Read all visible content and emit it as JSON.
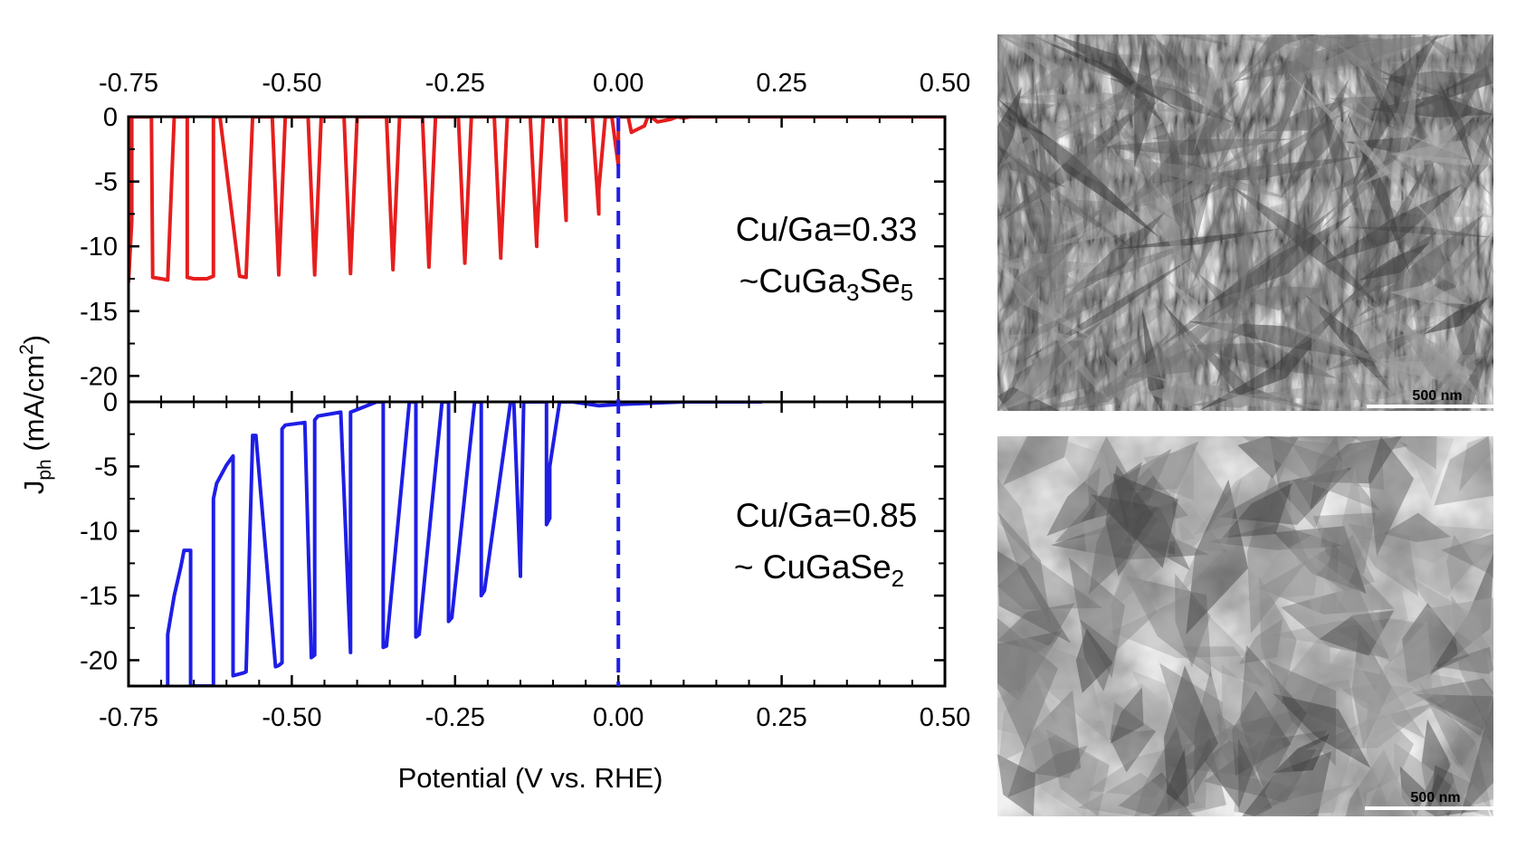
{
  "chart_data": {
    "type": "line",
    "xlabel": "Potential (V vs. RHE)",
    "ylabel": {
      "main": "J",
      "sub": "ph",
      "rest": " (mA/cm",
      "sup": "2",
      "close": ")"
    },
    "xlim": [
      -0.75,
      0.5
    ],
    "x_ticks": [
      -0.75,
      -0.5,
      -0.25,
      0.0,
      0.25,
      0.5
    ],
    "x_tick_labels": [
      "-0.75",
      "-0.50",
      "-0.25",
      "0.00",
      "0.25",
      "0.50"
    ],
    "reference_line": {
      "x": 0.0,
      "style": "dashed",
      "color": "#1f1fe6"
    },
    "panels": [
      {
        "ylim": [
          -22,
          0
        ],
        "y_ticks": [
          0,
          -5,
          -10,
          -15,
          -20
        ],
        "y_tick_labels": [
          "0",
          "-5",
          "-10",
          "-15",
          "-20"
        ],
        "color": "#e61e1e",
        "annotation": {
          "line1": "Cu/Ga=0.33",
          "line2": {
            "a": "~CuGa",
            "s1": "3",
            "b": "Se",
            "s2": "5"
          }
        },
        "x": [
          -0.75,
          -0.745,
          -0.745,
          -0.715,
          -0.713,
          -0.7,
          -0.69,
          -0.69,
          -0.68,
          -0.66,
          -0.66,
          -0.65,
          -0.63,
          -0.62,
          -0.62,
          -0.61,
          -0.58,
          -0.57,
          -0.57,
          -0.56,
          -0.53,
          -0.52,
          -0.52,
          -0.51,
          -0.475,
          -0.465,
          -0.465,
          -0.455,
          -0.42,
          -0.41,
          -0.41,
          -0.4,
          -0.355,
          -0.345,
          -0.345,
          -0.335,
          -0.3,
          -0.29,
          -0.29,
          -0.28,
          -0.245,
          -0.235,
          -0.235,
          -0.225,
          -0.19,
          -0.18,
          -0.18,
          -0.17,
          -0.135,
          -0.125,
          -0.125,
          -0.115,
          -0.09,
          -0.08,
          -0.08,
          -0.07,
          -0.04,
          -0.03,
          -0.03,
          -0.02,
          -0.01,
          0.0,
          0.0,
          0.0,
          0.015,
          0.02,
          0.04,
          0.045,
          0.05,
          0.06,
          0.08,
          0.09,
          0.1,
          0.11,
          0.14,
          0.15,
          0.16,
          0.17,
          0.2,
          0.22,
          0.24,
          0.28,
          0.35,
          0.5
        ],
        "y": [
          -12.8,
          -8.0,
          0.0,
          0.0,
          -12.4,
          -12.5,
          -12.6,
          -12.6,
          0.0,
          0.0,
          -12.4,
          -12.5,
          -12.5,
          -12.3,
          0.0,
          0.0,
          -12.3,
          -12.4,
          -12.3,
          0.0,
          0.0,
          -12.2,
          -12.2,
          0.0,
          0.0,
          -12.2,
          -12.1,
          0.0,
          0.0,
          -12.1,
          -12.0,
          0.0,
          0.0,
          -11.8,
          -11.7,
          0.0,
          0.0,
          -11.6,
          -11.5,
          0.0,
          0.0,
          -11.3,
          -11.2,
          0.0,
          0.0,
          -10.9,
          -10.6,
          0.0,
          0.0,
          -10.0,
          -9.4,
          0.0,
          0.0,
          -8.0,
          0.0,
          0.0,
          0.0,
          -7.5,
          -5.6,
          0.0,
          0.0,
          -3.8,
          -2.5,
          0.0,
          0.0,
          -1.2,
          -0.7,
          0.0,
          0.0,
          -0.4,
          -0.2,
          0.0,
          -0.1,
          0.0,
          0.0,
          0.0,
          0.0,
          0.0,
          0.0,
          0.0,
          0.0,
          0.0,
          0.0,
          0.0
        ],
        "seg_x": [
          [
            -0.75,
            -0.745
          ],
          [
            -0.745,
            -0.715
          ],
          [
            -0.715,
            -0.69
          ],
          [
            -0.69,
            -0.66
          ],
          [
            -0.66,
            -0.62
          ],
          [
            -0.62,
            -0.57
          ],
          [
            -0.57,
            -0.52
          ],
          [
            -0.52,
            -0.465
          ],
          [
            -0.465,
            -0.41
          ],
          [
            -0.41,
            -0.345
          ],
          [
            -0.345,
            -0.29
          ],
          [
            -0.29,
            -0.235
          ],
          [
            -0.235,
            -0.18
          ],
          [
            -0.18,
            -0.125
          ],
          [
            -0.125,
            -0.08
          ],
          [
            -0.08,
            -0.03
          ],
          [
            -0.03,
            0.0
          ],
          [
            0.0,
            0.04
          ],
          [
            0.04,
            0.08
          ],
          [
            0.08,
            0.1
          ],
          [
            0.1,
            0.14
          ],
          [
            0.14,
            0.15
          ],
          [
            0.15,
            0.2
          ],
          [
            0.2,
            0.5
          ]
        ]
      },
      {
        "ylim": [
          -22,
          0
        ],
        "y_ticks": [
          0,
          -5,
          -10,
          -15,
          -20
        ],
        "y_tick_labels": [
          "0",
          "-5",
          "-10",
          "-15",
          "-20"
        ],
        "color": "#1e1ee6",
        "annotation": {
          "line1": "Cu/Ga=0.85",
          "line2": {
            "a": "~ CuGaSe",
            "s1": "",
            "b": "",
            "s2": "2"
          }
        },
        "x": [
          -0.69,
          -0.69,
          -0.68,
          -0.67,
          -0.665,
          -0.655,
          -0.655,
          -0.655,
          -0.655,
          -0.62,
          -0.62,
          -0.615,
          -0.6,
          -0.59,
          -0.59,
          -0.59,
          -0.575,
          -0.57,
          -0.56,
          -0.56,
          -0.555,
          -0.525,
          -0.52,
          -0.515,
          -0.515,
          -0.51,
          -0.48,
          -0.47,
          -0.465,
          -0.465,
          -0.46,
          -0.425,
          -0.41,
          -0.41,
          -0.41,
          -0.405,
          -0.37,
          -0.36,
          -0.36,
          -0.355,
          -0.32,
          -0.31,
          -0.31,
          -0.305,
          -0.27,
          -0.26,
          -0.26,
          -0.255,
          -0.22,
          -0.21,
          -0.21,
          -0.205,
          -0.165,
          -0.16,
          -0.15,
          -0.15,
          -0.145,
          -0.11,
          -0.11,
          -0.105,
          -0.105,
          -0.09,
          -0.08,
          -0.07,
          -0.03,
          0.0,
          0.1,
          0.22
        ],
        "y": [
          -22.0,
          -18.0,
          -15.0,
          -12.8,
          -11.5,
          -11.5,
          -22.0,
          -22.0,
          -22.0,
          -22.0,
          -7.5,
          -6.3,
          -4.9,
          -4.2,
          -21.2,
          -21.2,
          -21.0,
          -20.9,
          -2.8,
          -2.6,
          -2.6,
          -20.5,
          -20.4,
          -20.2,
          -2.1,
          -1.8,
          -1.6,
          -19.8,
          -19.6,
          -1.4,
          -1.1,
          -0.8,
          -19.4,
          -19.3,
          -0.8,
          -0.7,
          0.0,
          0.0,
          -19.0,
          -18.9,
          0.0,
          0.0,
          -18.2,
          -18.0,
          0.0,
          0.0,
          -17.0,
          -16.7,
          0.0,
          0.0,
          -15.0,
          -14.6,
          0.0,
          0.0,
          -13.5,
          -13.0,
          0.0,
          0.0,
          -9.5,
          -9.0,
          -5.0,
          0.0,
          0.0,
          0.0,
          -0.3,
          -0.2,
          0.0,
          0.0
        ]
      }
    ]
  },
  "sem_images": [
    {
      "scale_bar": "500 nm",
      "texture": "platelet"
    },
    {
      "scale_bar": "500 nm",
      "texture": "faceted"
    }
  ]
}
